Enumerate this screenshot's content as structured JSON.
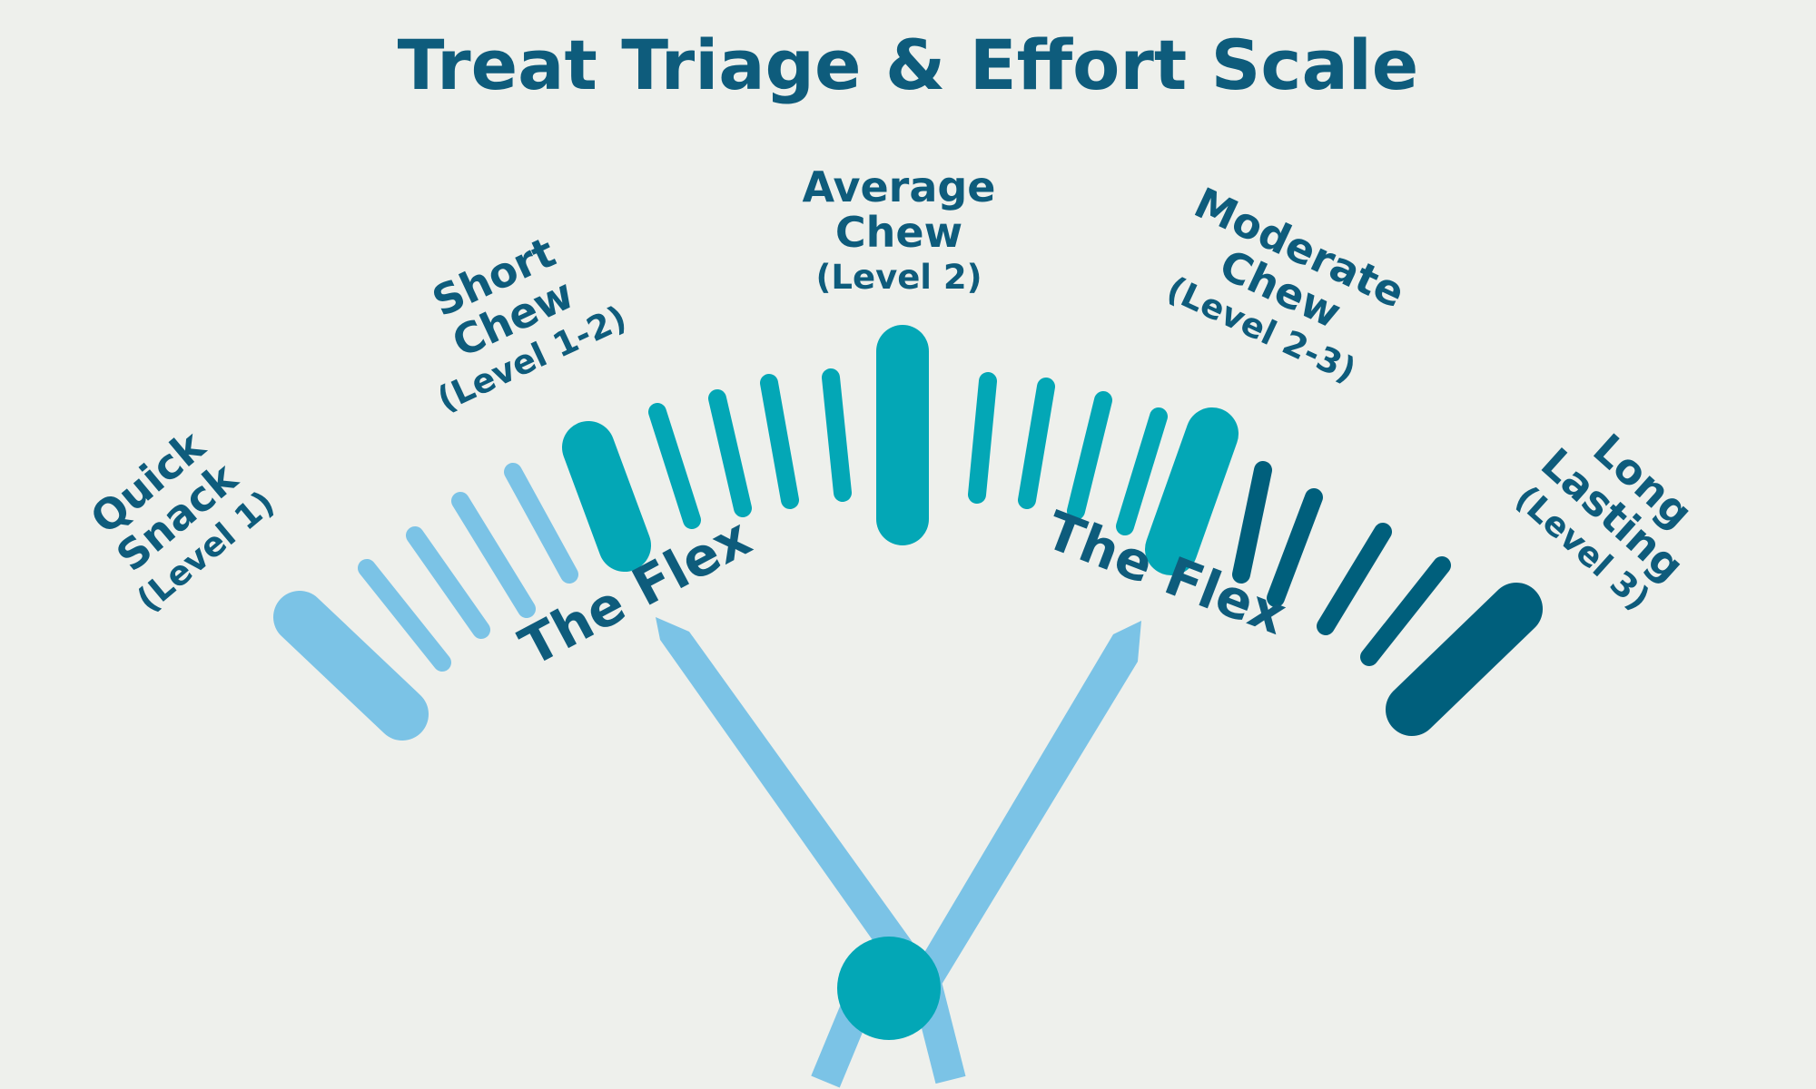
{
  "title": "Treat Triage & Effort Scale",
  "colors": {
    "background": "#eef0ec",
    "light_blue": "#7bc3e6",
    "teal": "#03a7b6",
    "dark_teal": "#005f7c",
    "text": "#0e5c7c"
  },
  "zones": [
    {
      "name_line1": "Quick",
      "name_line2": "Snack",
      "level": "(Level 1)"
    },
    {
      "name_line1": "Short",
      "name_line2": "Chew",
      "level": "(Level 1-2)"
    },
    {
      "name_line1": "Average",
      "name_line2": "Chew",
      "level": "(Level 2)"
    },
    {
      "name_line1": "Moderate",
      "name_line2": "Chew",
      "level": "(Level 2-3)"
    },
    {
      "name_line1": "Long",
      "name_line2": "Lasting",
      "level": "(Level 3)"
    }
  ],
  "needles": [
    {
      "label": "The Flex"
    },
    {
      "label": "The Flex"
    }
  ]
}
